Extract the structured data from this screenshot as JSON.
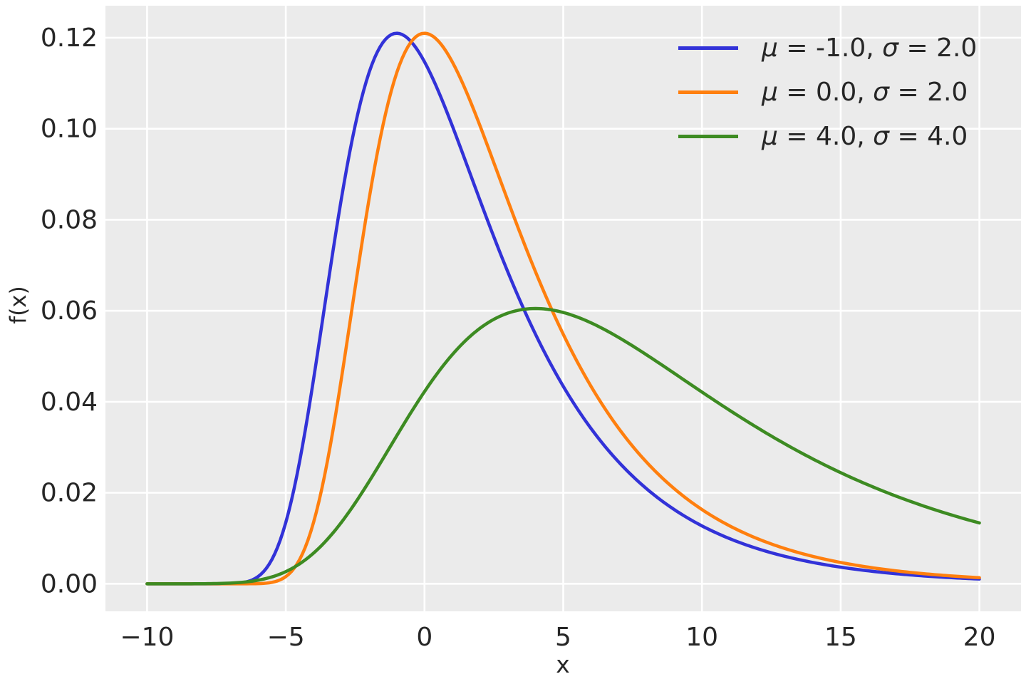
{
  "figure": {
    "background_color": "#ffffff"
  },
  "chart_data": {
    "type": "line",
    "title": "",
    "xlabel": "x",
    "ylabel": "f(x)",
    "x_range": [
      -10,
      20
    ],
    "xlim": [
      -11.5,
      21.5
    ],
    "ylim": [
      -0.00605,
      0.12704
    ],
    "grid": true,
    "plot_bg_color": "#ebebeb",
    "grid_color": "#ffffff",
    "text_color": "#262626",
    "tick_font_px": 36,
    "label_font_px": 33,
    "legend_position": "upper right",
    "distribution": "moyal",
    "formula": "f(x) = exp(-(z + exp(-z))/2) / (sigma*sqrt(2*pi)), z = (x - mu)/sigma",
    "xticks": {
      "values": [
        -10,
        -5,
        0,
        5,
        10,
        15,
        20
      ],
      "labels": [
        "−10",
        "−5",
        "0",
        "5",
        "10",
        "15",
        "20"
      ]
    },
    "yticks": {
      "values": [
        0.0,
        0.02,
        0.04,
        0.06,
        0.08,
        0.1,
        0.12
      ],
      "labels": [
        "0.00",
        "0.02",
        "0.04",
        "0.06",
        "0.08",
        "0.10",
        "0.12"
      ]
    },
    "series": [
      {
        "name": "μ = -1.0, σ = 2.0",
        "mu": -1.0,
        "sigma": 2.0,
        "color": "#3232d8",
        "line_width": 4.5,
        "peak": {
          "x": -1.0,
          "y": 0.12099
        },
        "sample_points": {
          "x": [
            -10,
            -8,
            -6,
            -4,
            -2,
            0,
            2,
            4,
            6,
            8,
            10,
            12,
            14,
            16,
            18,
            20
          ],
          "y": [
            0,
            0,
            0.00158,
            0.04492,
            0.11235,
            0.11471,
            0.08428,
            0.05486,
            0.03415,
            0.02091,
            0.01273,
            0.00773,
            0.00469,
            0.00285,
            0.00173,
            0.00105
          ]
        }
      },
      {
        "name": "μ = 0.0, σ = 2.0",
        "mu": 0.0,
        "sigma": 2.0,
        "color": "#ff7f0e",
        "line_width": 4.5,
        "peak": {
          "x": 0.0,
          "y": 0.12099
        },
        "sample_points": {
          "x": [
            -10,
            -8,
            -6,
            -4,
            -2,
            0,
            2,
            4,
            6,
            8,
            10,
            12,
            14,
            16,
            18,
            20
          ],
          "y": [
            0,
            0,
            4e-05,
            0.01348,
            0.08448,
            0.12099,
            0.10066,
            0.06858,
            0.04343,
            0.02675,
            0.01632,
            0.00992,
            0.00602,
            0.00365,
            0.00222,
            0.00134
          ]
        }
      },
      {
        "name": "μ = 4.0, σ = 4.0",
        "mu": 4.0,
        "sigma": 4.0,
        "color": "#3d8b22",
        "line_width": 4.5,
        "peak": {
          "x": 4.0,
          "y": 0.06049
        },
        "sample_points": {
          "x": [
            -10,
            -8,
            -6,
            -4,
            -2,
            0,
            2,
            4,
            6,
            8,
            10,
            12,
            14,
            16,
            18,
            20
          ],
          "y": [
            0,
            2e-05,
            0.00079,
            0.00674,
            0.02246,
            0.04224,
            0.05616,
            0.06049,
            0.05736,
            0.05033,
            0.04214,
            0.03429,
            0.02743,
            0.02171,
            0.01708,
            0.01338
          ]
        }
      }
    ]
  }
}
